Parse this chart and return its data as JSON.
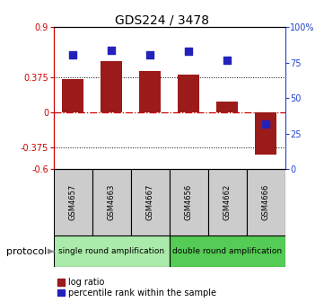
{
  "title": "GDS224 / 3478",
  "samples": [
    "GSM4657",
    "GSM4663",
    "GSM4667",
    "GSM4656",
    "GSM4662",
    "GSM4666"
  ],
  "log_ratio": [
    0.355,
    0.545,
    0.435,
    0.395,
    0.115,
    -0.445
  ],
  "percentile_rank": [
    80.5,
    83.5,
    80.5,
    83.0,
    76.5,
    32.0
  ],
  "left_ylim": [
    -0.6,
    0.9
  ],
  "right_ylim": [
    0,
    100
  ],
  "left_yticks": [
    -0.6,
    -0.375,
    0,
    0.375,
    0.9
  ],
  "right_yticks": [
    0,
    25,
    50,
    75,
    100
  ],
  "hlines_dotted": [
    0.375,
    -0.375
  ],
  "bar_color": "#9b1a1a",
  "dot_color": "#2222bb",
  "protocol_groups": [
    {
      "label": "single round amplification",
      "n": 3,
      "color": "#aaeaaa"
    },
    {
      "label": "double round amplification",
      "n": 3,
      "color": "#55cc55"
    }
  ],
  "protocol_label": "protocol",
  "legend_red": "log ratio",
  "legend_blue": "percentile rank within the sample",
  "bar_width": 0.55,
  "dot_size": 28,
  "left_axis_color": "#cc0000",
  "right_axis_color": "#2244cc",
  "sample_box_color": "#cccccc",
  "title_fontsize": 10,
  "tick_fontsize": 7,
  "sample_fontsize": 6,
  "proto_fontsize": 6.5,
  "legend_fontsize": 7
}
